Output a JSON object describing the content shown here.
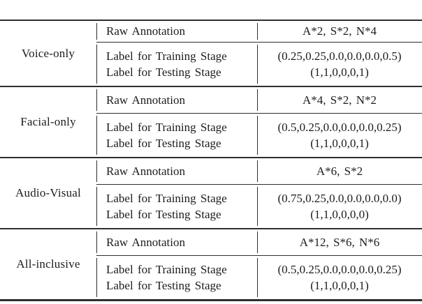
{
  "colors": {
    "text": "#1c1c1c",
    "rule": "#2e2e2e",
    "bg": "#ffffff"
  },
  "table": {
    "row_labels": {
      "raw": "Raw Annotation",
      "training": "Label for Training Stage",
      "testing": "Label for Testing Stage"
    },
    "sections": [
      {
        "label": "Voice-only",
        "raw_annotation": "A*2, S*2, N*4",
        "training_label": "(0.25,0.25,0.0,0.0,0.0,0.5)",
        "testing_label": "(1,1,0,0,0,1)"
      },
      {
        "label": "Facial-only",
        "raw_annotation": "A*4, S*2, N*2",
        "training_label": "(0.5,0.25,0.0,0.0,0.0,0.25)",
        "testing_label": "(1,1,0,0,0,1)"
      },
      {
        "label": "Audio-Visual",
        "raw_annotation": "A*6, S*2",
        "training_label": "(0.75,0.25,0.0,0.0,0.0,0.0)",
        "testing_label": "(1,1,0,0,0,0)"
      },
      {
        "label": "All-inclusive",
        "raw_annotation": "A*12, S*6, N*6",
        "training_label": "(0.5,0.25,0.0,0.0,0.0,0.25)",
        "testing_label": "(1,1,0,0,0,1)"
      }
    ]
  }
}
